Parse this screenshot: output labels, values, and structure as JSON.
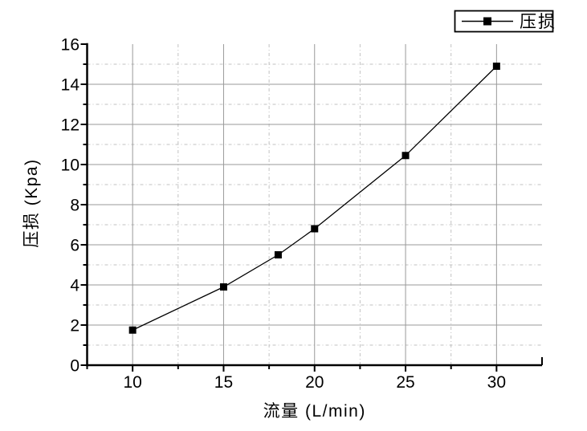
{
  "chart_data": {
    "type": "line",
    "title": "",
    "xlabel": "流量 (L/min)",
    "ylabel": "压损 (Kpa)",
    "series": [
      {
        "name": "压损",
        "x": [
          10,
          15,
          18,
          20,
          25,
          30
        ],
        "y": [
          1.75,
          3.9,
          5.5,
          6.8,
          10.45,
          14.9
        ],
        "color": "#000000",
        "marker": "filled-square",
        "line_style": "solid"
      }
    ],
    "xlim": [
      7.5,
      32.5
    ],
    "ylim": [
      0,
      16
    ],
    "x_major_ticks": [
      10,
      15,
      20,
      25,
      30
    ],
    "x_minor_ticks": [
      7.5,
      12.5,
      17.5,
      22.5,
      27.5,
      32.5
    ],
    "y_major_ticks": [
      0,
      2,
      4,
      6,
      8,
      10,
      12,
      14,
      16
    ],
    "y_minor_ticks": [
      1,
      3,
      5,
      7,
      9,
      11,
      13,
      15
    ],
    "grid": {
      "major": true,
      "minor": true,
      "major_color": "#999999",
      "minor_color": "#c2c2c2",
      "minor_style": "dash-dot"
    },
    "legend": {
      "label": "压损",
      "position": "top-right",
      "border": true
    },
    "colors": {
      "background": "#ffffff",
      "axis": "#000000",
      "line": "#000000",
      "marker": "#000000",
      "text": "#000000"
    }
  }
}
